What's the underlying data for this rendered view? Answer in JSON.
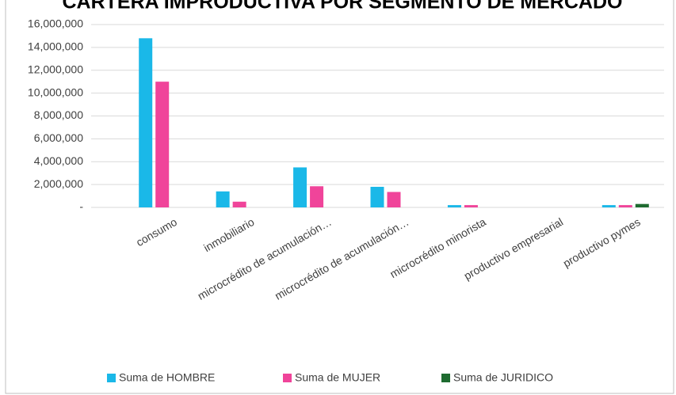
{
  "chart_data": {
    "type": "bar",
    "title": "CARTERA IMPRODUCTIVA POR SEGMENTO DE MERCADO",
    "categories": [
      "consumo",
      "inmobiliario",
      "microcrédito de acumulación…",
      "microcrédito de acumulación…",
      "microcrédito minorista",
      "productivo empresarial",
      "productivo pymes"
    ],
    "series": [
      {
        "name": "Suma de HOMBRE",
        "color": "#1ab8e8",
        "values": [
          14800000,
          1400000,
          3500000,
          1800000,
          200000,
          0,
          200000
        ]
      },
      {
        "name": "Suma de MUJER",
        "color": "#f0449a",
        "values": [
          11000000,
          500000,
          1850000,
          1350000,
          200000,
          0,
          200000
        ]
      },
      {
        "name": "Suma de JURIDICO",
        "color": "#1e6b30",
        "values": [
          0,
          0,
          0,
          0,
          0,
          0,
          300000
        ]
      }
    ],
    "ylim": [
      0,
      16000000
    ],
    "yticks": [
      {
        "value": 0,
        "label": "-"
      },
      {
        "value": 2000000,
        "label": "2,000,000"
      },
      {
        "value": 4000000,
        "label": "4,000,000"
      },
      {
        "value": 6000000,
        "label": "6,000,000"
      },
      {
        "value": 8000000,
        "label": "8,000,000"
      },
      {
        "value": 10000000,
        "label": "10,000,000"
      },
      {
        "value": 12000000,
        "label": "12,000,000"
      },
      {
        "value": 14000000,
        "label": "14,000,000"
      },
      {
        "value": 16000000,
        "label": "16,000,000"
      }
    ],
    "grid": true,
    "legend": "bottom"
  }
}
